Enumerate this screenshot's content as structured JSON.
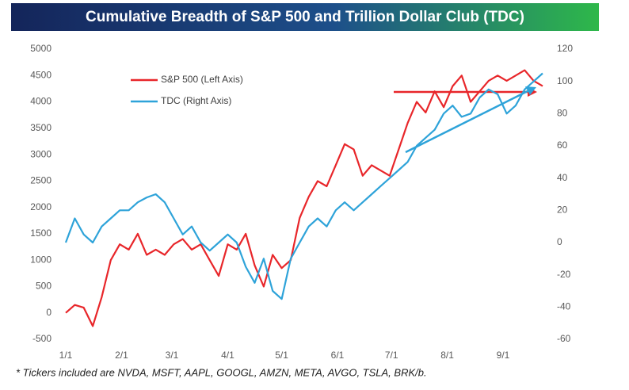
{
  "chart_data": {
    "type": "line",
    "title": "Cumulative Breadth of S&P 500 and Trillion Dollar Club (TDC)",
    "footnote": "* Tickers included are NVDA, MSFT, AAPL, GOOGL, AMZN, META, AVGO, TSLA, BRK/b.",
    "x": [
      0,
      5,
      10,
      15,
      20,
      25,
      30,
      35,
      40,
      45,
      50,
      55,
      60,
      65,
      70,
      75,
      80,
      85,
      90,
      95,
      100,
      105,
      110,
      115,
      120,
      125,
      130,
      135,
      140,
      145,
      150,
      155,
      160,
      165,
      170,
      175,
      180,
      185,
      190,
      195,
      200,
      205,
      210,
      215,
      220,
      225,
      230,
      235,
      240,
      245,
      250,
      255,
      260,
      265
    ],
    "xlim": [
      0,
      265
    ],
    "xticks": [
      {
        "value": 0,
        "label": "1/1"
      },
      {
        "value": 31,
        "label": "2/1"
      },
      {
        "value": 59,
        "label": "3/1"
      },
      {
        "value": 90,
        "label": "4/1"
      },
      {
        "value": 120,
        "label": "5/1"
      },
      {
        "value": 151,
        "label": "6/1"
      },
      {
        "value": 181,
        "label": "7/1"
      },
      {
        "value": 212,
        "label": "8/1"
      },
      {
        "value": 243,
        "label": "9/1"
      }
    ],
    "ylim": [
      -500,
      5000
    ],
    "yticks": [
      -500,
      0,
      500,
      1000,
      1500,
      2000,
      2500,
      3000,
      3500,
      4000,
      4500,
      5000
    ],
    "y2lim": [
      -60,
      120
    ],
    "y2ticks": [
      -60,
      -40,
      -20,
      0,
      20,
      40,
      60,
      80,
      100,
      120
    ],
    "series": [
      {
        "name": "S&P 500 (Left Axis)",
        "color": "#e8262a",
        "axis": "y",
        "values": [
          0,
          150,
          100,
          -250,
          300,
          1000,
          1300,
          1200,
          1500,
          1100,
          1200,
          1100,
          1300,
          1400,
          1200,
          1300,
          1000,
          700,
          1300,
          1200,
          1500,
          900,
          500,
          1100,
          850,
          1000,
          1800,
          2200,
          2500,
          2400,
          2800,
          3200,
          3100,
          2600,
          2800,
          2700,
          2600,
          3100,
          3600,
          4000,
          3800,
          4200,
          3900,
          4300,
          4500,
          4000,
          4200,
          4400,
          4500,
          4400,
          4500,
          4600,
          4400,
          4300
        ]
      },
      {
        "name": "TDC (Right Axis)",
        "color": "#2ea3d9",
        "axis": "y2",
        "values": [
          0,
          15,
          5,
          0,
          10,
          15,
          20,
          20,
          25,
          28,
          30,
          25,
          15,
          5,
          10,
          0,
          -5,
          0,
          5,
          0,
          -15,
          -25,
          -10,
          -30,
          -35,
          -10,
          0,
          10,
          15,
          10,
          20,
          25,
          20,
          25,
          30,
          35,
          40,
          45,
          50,
          60,
          65,
          70,
          80,
          85,
          78,
          80,
          90,
          95,
          92,
          80,
          85,
          95,
          100,
          105
        ]
      }
    ],
    "legend": "upper left"
  }
}
